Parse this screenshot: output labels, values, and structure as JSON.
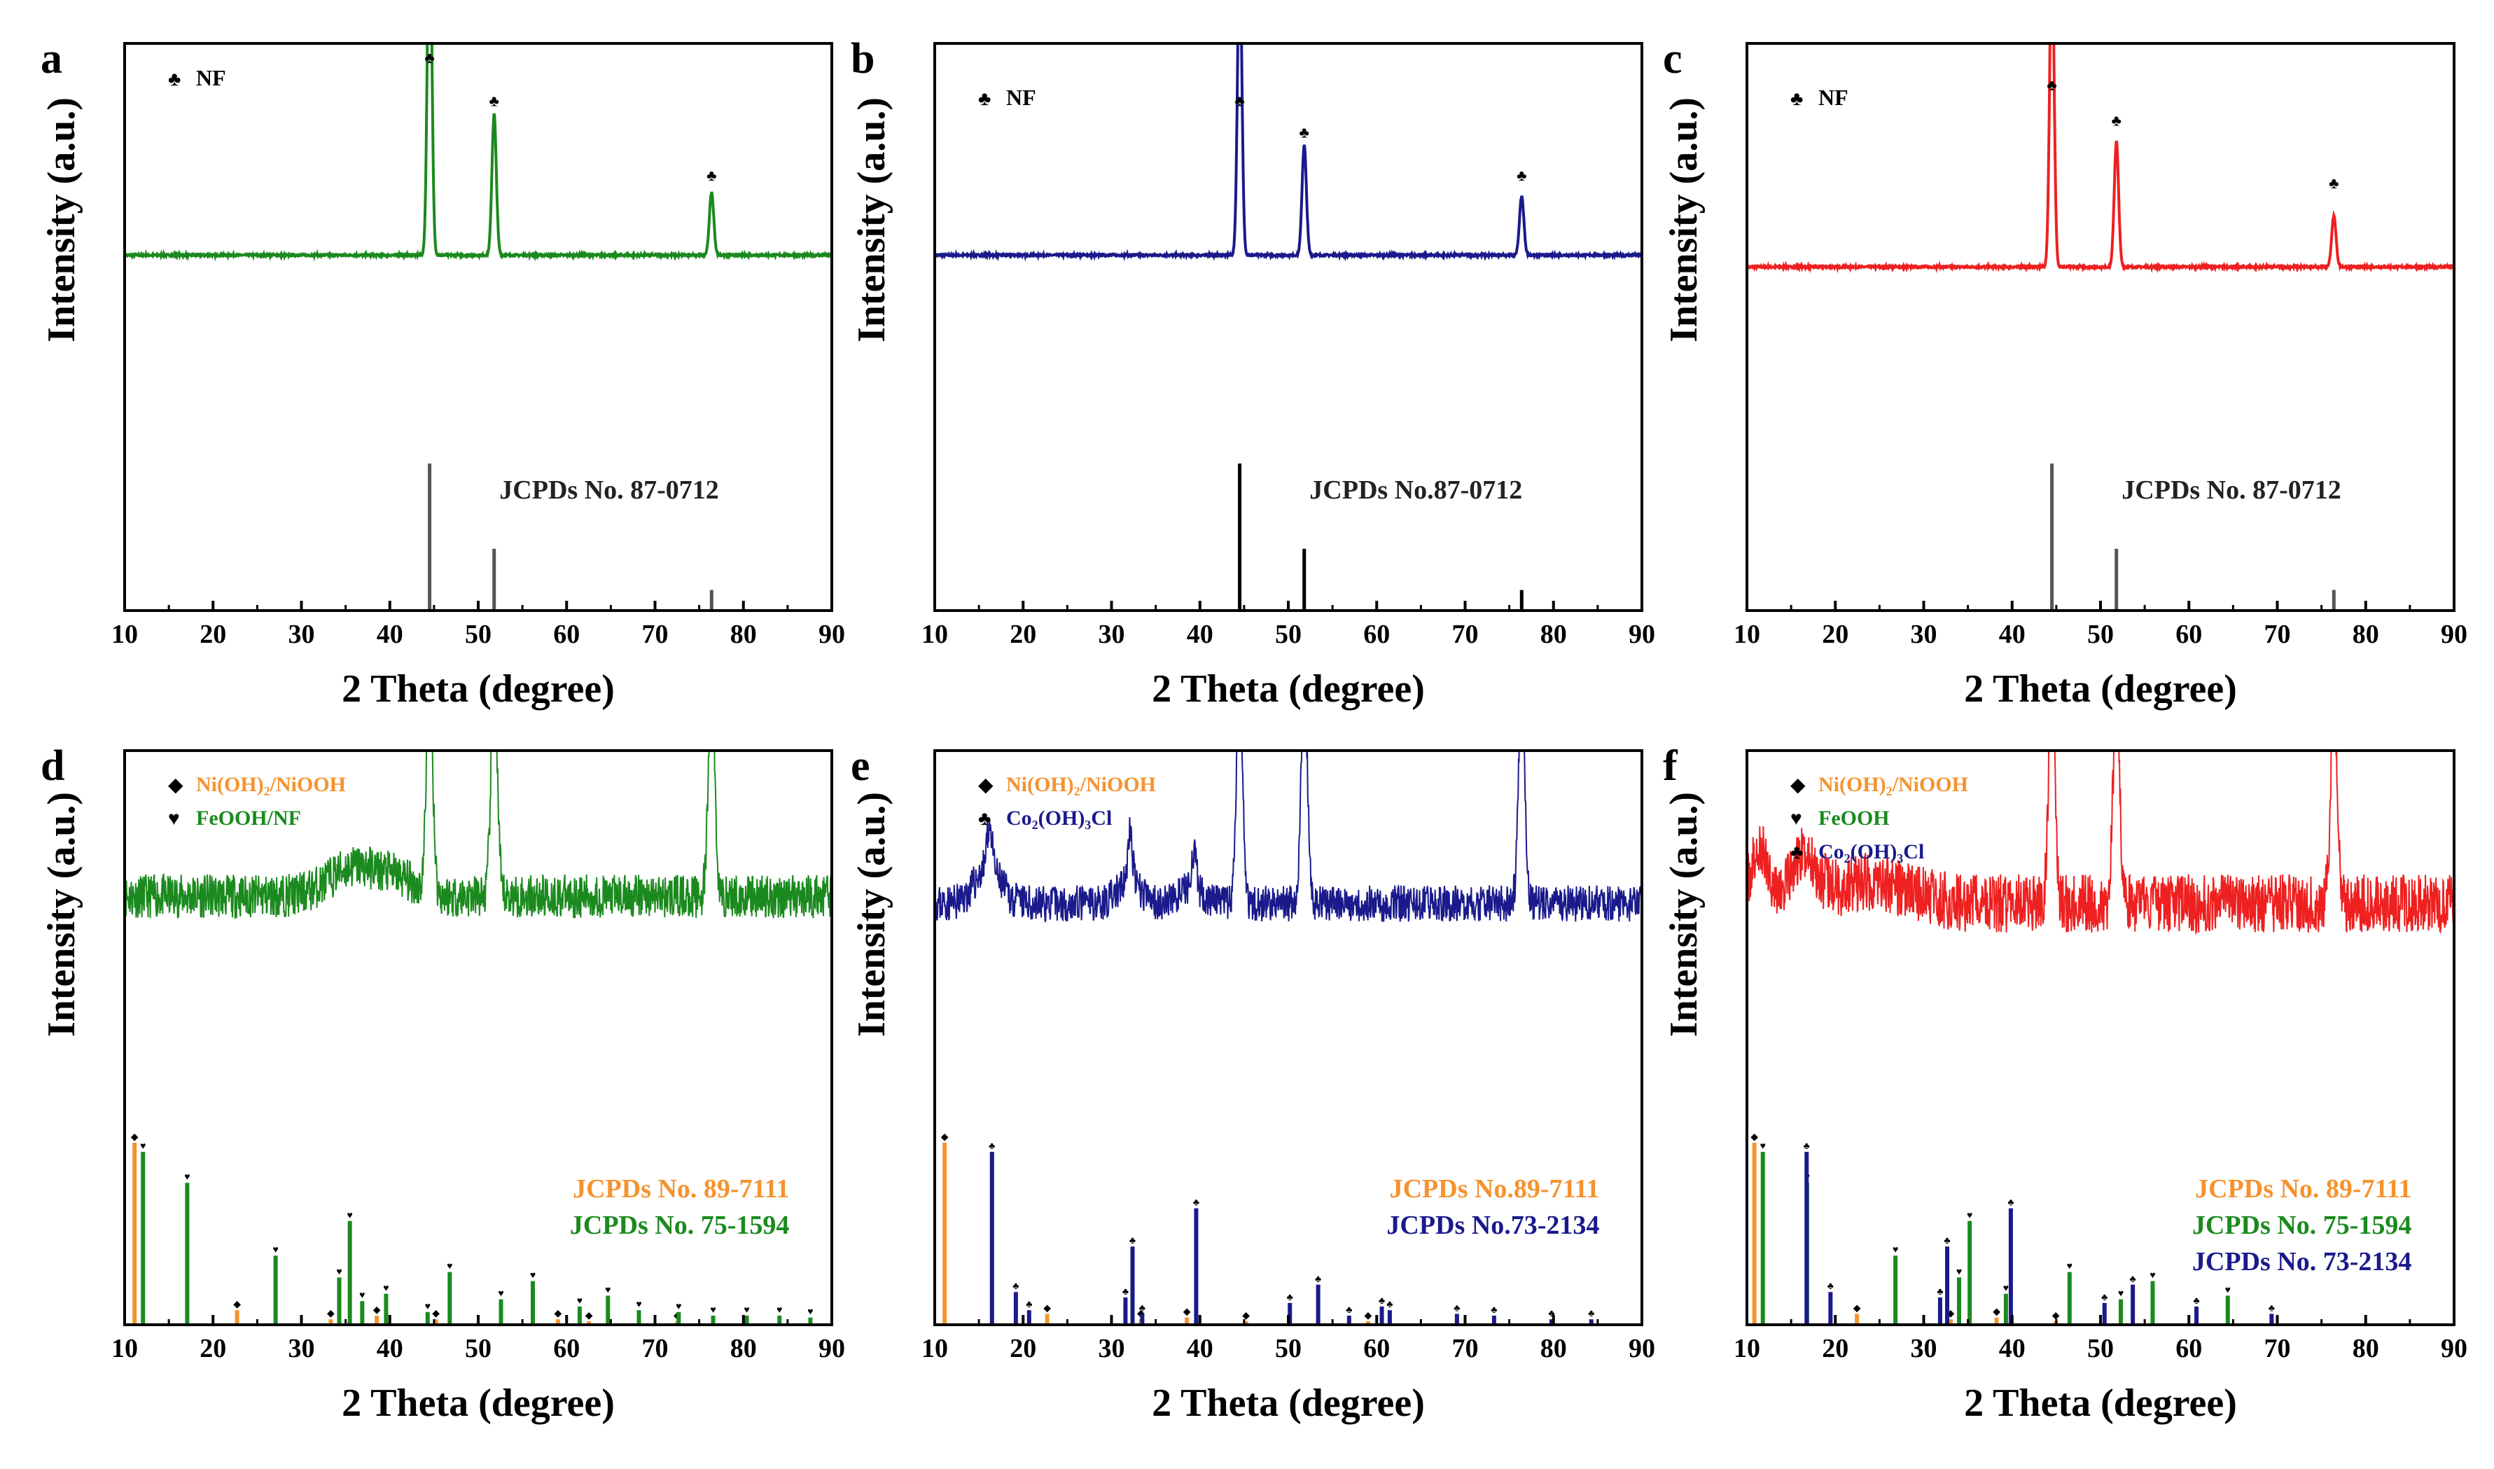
{
  "colors": {
    "green": "#1b8a1e",
    "blue": "#1a1a8c",
    "red": "#ee2020",
    "orange": "#f5932f",
    "ref_gray": "#555555",
    "black": "#000000"
  },
  "chart_data": [
    {
      "panel": "a",
      "type": "line",
      "xlabel": "2 Theta (degree)",
      "ylabel": "Intensity (a.u.)",
      "xlim": [
        10,
        90
      ],
      "xticks": [
        10,
        20,
        30,
        40,
        50,
        60,
        70,
        80,
        90
      ],
      "ylim": [
        0,
        100
      ],
      "color_key": "green",
      "baseline": 46,
      "noise": 0.25,
      "peaks": [
        {
          "x": 44.5,
          "h": 93,
          "w": 0.35
        },
        {
          "x": 51.8,
          "h": 36,
          "w": 0.35
        },
        {
          "x": 76.4,
          "h": 16,
          "w": 0.35
        }
      ],
      "markers": [
        {
          "x": 44.5,
          "y": 95,
          "symbol": "♣"
        },
        {
          "x": 51.8,
          "y": 84,
          "symbol": "♣"
        },
        {
          "x": 76.4,
          "y": 65,
          "symbol": "♣"
        }
      ],
      "legend": [
        {
          "symbol": "♣",
          "label": "NF",
          "color_key": "black"
        }
      ],
      "refs": [
        {
          "label": "JCPDs No. 87-0712",
          "color_key": "ref_gray",
          "lines": [
            {
              "x": 44.5,
              "h": 100
            },
            {
              "x": 51.8,
              "h": 42
            },
            {
              "x": 76.4,
              "h": 14
            }
          ]
        }
      ]
    },
    {
      "panel": "b",
      "type": "line",
      "xlabel": "2 Theta (degree)",
      "ylabel": "Intensity (a.u.)",
      "xlim": [
        10,
        90
      ],
      "xticks": [
        10,
        20,
        30,
        40,
        50,
        60,
        70,
        80,
        90
      ],
      "ylim": [
        0,
        100
      ],
      "color_key": "blue",
      "baseline": 46,
      "noise": 0.25,
      "peaks": [
        {
          "x": 44.5,
          "h": 77,
          "w": 0.35
        },
        {
          "x": 51.8,
          "h": 28,
          "w": 0.35
        },
        {
          "x": 76.4,
          "h": 15,
          "w": 0.35
        }
      ],
      "markers": [
        {
          "x": 44.5,
          "y": 84,
          "symbol": "♣"
        },
        {
          "x": 51.8,
          "y": 76,
          "symbol": "♣"
        },
        {
          "x": 76.4,
          "y": 65,
          "symbol": "♣"
        }
      ],
      "legend": [
        {
          "symbol": "♣",
          "label": "NF",
          "color_key": "black"
        }
      ],
      "refs": [
        {
          "label": "JCPDs No.87-0712",
          "color_key": "black",
          "lines": [
            {
              "x": 44.5,
              "h": 100
            },
            {
              "x": 51.8,
              "h": 42
            },
            {
              "x": 76.4,
              "h": 14
            }
          ]
        }
      ]
    },
    {
      "panel": "c",
      "type": "line",
      "xlabel": "2 Theta (degree)",
      "ylabel": "Intensity (a.u.)",
      "xlim": [
        10,
        90
      ],
      "xticks": [
        10,
        20,
        30,
        40,
        50,
        60,
        70,
        80,
        90
      ],
      "ylim": [
        0,
        100
      ],
      "color_key": "red",
      "baseline": 43,
      "noise": 0.25,
      "peaks": [
        {
          "x": 44.5,
          "h": 83,
          "w": 0.35
        },
        {
          "x": 51.8,
          "h": 32,
          "w": 0.35
        },
        {
          "x": 76.4,
          "h": 13,
          "w": 0.35
        }
      ],
      "markers": [
        {
          "x": 44.5,
          "y": 88,
          "symbol": "♣"
        },
        {
          "x": 51.8,
          "y": 79,
          "symbol": "♣"
        },
        {
          "x": 76.4,
          "y": 63,
          "symbol": "♣"
        }
      ],
      "legend": [
        {
          "symbol": "♣",
          "label": "NF",
          "color_key": "black"
        }
      ],
      "refs": [
        {
          "label": "JCPDs No. 87-0712",
          "color_key": "ref_gray",
          "lines": [
            {
              "x": 44.5,
              "h": 100
            },
            {
              "x": 51.8,
              "h": 42
            },
            {
              "x": 76.4,
              "h": 14
            }
          ]
        }
      ]
    },
    {
      "panel": "d",
      "type": "line",
      "xlabel": "2 Theta (degree)",
      "ylabel": "Intensity (a.u.)",
      "xlim": [
        10,
        90
      ],
      "xticks": [
        10,
        20,
        30,
        40,
        50,
        60,
        70,
        80,
        90
      ],
      "ylim": [
        0,
        100
      ],
      "color_key": "green",
      "baseline": 60,
      "noise": 6,
      "seed": 11,
      "humps": [
        {
          "x": 36,
          "h": 8,
          "w": 4
        },
        {
          "x": 41,
          "h": 4,
          "w": 3
        }
      ],
      "peaks": [
        {
          "x": 44.5,
          "h": 60,
          "w": 0.5
        },
        {
          "x": 51.8,
          "h": 60,
          "w": 0.5
        },
        {
          "x": 76.4,
          "h": 60,
          "w": 0.5
        }
      ],
      "markers": [],
      "legend": [
        {
          "symbol": "◆",
          "label": "Ni(OH)₂/NiOOH",
          "color_key": "orange"
        },
        {
          "symbol": "♥",
          "label": "FeOOH/NF",
          "color_key": "green"
        }
      ],
      "refs": [
        {
          "label": "JCPDs No. 89-7111",
          "color_key": "orange",
          "symbol": "◆",
          "lines": [
            {
              "x": 11.4,
              "h": 100
            },
            {
              "x": 23.0,
              "h": 8
            },
            {
              "x": 33.6,
              "h": 3
            },
            {
              "x": 38.8,
              "h": 5
            },
            {
              "x": 45.5,
              "h": 3
            },
            {
              "x": 59.3,
              "h": 3
            },
            {
              "x": 62.8,
              "h": 2
            },
            {
              "x": 72.8,
              "h": 2
            }
          ]
        },
        {
          "label": "JCPDs No. 75-1594",
          "color_key": "green",
          "symbol": "♥",
          "lines": [
            {
              "x": 11.8,
              "h": 95
            },
            {
              "x": 16.8,
              "h": 78
            },
            {
              "x": 26.8,
              "h": 38
            },
            {
              "x": 34.0,
              "h": 26
            },
            {
              "x": 35.2,
              "h": 57
            },
            {
              "x": 36.6,
              "h": 13
            },
            {
              "x": 39.3,
              "h": 17
            },
            {
              "x": 44.0,
              "h": 7
            },
            {
              "x": 46.5,
              "h": 29
            },
            {
              "x": 52.3,
              "h": 14
            },
            {
              "x": 55.9,
              "h": 24
            },
            {
              "x": 61.2,
              "h": 10
            },
            {
              "x": 64.4,
              "h": 16
            },
            {
              "x": 67.9,
              "h": 8
            },
            {
              "x": 72.4,
              "h": 7
            },
            {
              "x": 76.3,
              "h": 5
            },
            {
              "x": 80.1,
              "h": 5
            },
            {
              "x": 83.8,
              "h": 5
            },
            {
              "x": 87.3,
              "h": 4
            }
          ]
        }
      ]
    },
    {
      "panel": "e",
      "type": "line",
      "xlabel": "2 Theta (degree)",
      "ylabel": "Intensity (a.u.)",
      "xlim": [
        10,
        90
      ],
      "xticks": [
        10,
        20,
        30,
        40,
        50,
        60,
        70,
        80,
        90
      ],
      "ylim": [
        0,
        100
      ],
      "color_key": "blue",
      "baseline": 58,
      "noise": 5,
      "seed": 23,
      "humps": [
        {
          "x": 16,
          "h": 10,
          "w": 2
        },
        {
          "x": 32,
          "h": 5,
          "w": 2
        },
        {
          "x": 39,
          "h": 4,
          "w": 2
        }
      ],
      "peaks": [
        {
          "x": 16.2,
          "h": 12,
          "w": 0.4
        },
        {
          "x": 32.1,
          "h": 14,
          "w": 0.4
        },
        {
          "x": 39.3,
          "h": 10,
          "w": 0.4
        },
        {
          "x": 44.5,
          "h": 60,
          "w": 0.5
        },
        {
          "x": 51.8,
          "h": 60,
          "w": 0.5
        },
        {
          "x": 76.4,
          "h": 60,
          "w": 0.5
        }
      ],
      "markers": [],
      "legend": [
        {
          "symbol": "◆",
          "label": "Ni(OH)₂/NiOOH",
          "color_key": "orange"
        },
        {
          "symbol": "♣",
          "label": "Co₂(OH)₃Cl",
          "color_key": "blue"
        }
      ],
      "refs": [
        {
          "label": "JCPDs No.89-7111",
          "color_key": "orange",
          "symbol": "◆",
          "lines": [
            {
              "x": 11.4,
              "h": 100
            },
            {
              "x": 23.0,
              "h": 6
            },
            {
              "x": 33.6,
              "h": 3
            },
            {
              "x": 38.8,
              "h": 4
            },
            {
              "x": 45.5,
              "h": 2
            },
            {
              "x": 59.3,
              "h": 2
            }
          ]
        },
        {
          "label": "JCPDs No.73-2134",
          "color_key": "blue",
          "symbol": "♣",
          "lines": [
            {
              "x": 16.2,
              "h": 95
            },
            {
              "x": 18.9,
              "h": 18
            },
            {
              "x": 20.4,
              "h": 8
            },
            {
              "x": 31.3,
              "h": 15
            },
            {
              "x": 32.1,
              "h": 43
            },
            {
              "x": 33.2,
              "h": 6
            },
            {
              "x": 39.3,
              "h": 64
            },
            {
              "x": 49.9,
              "h": 12
            },
            {
              "x": 53.1,
              "h": 22
            },
            {
              "x": 56.6,
              "h": 5
            },
            {
              "x": 60.3,
              "h": 10
            },
            {
              "x": 61.2,
              "h": 8
            },
            {
              "x": 68.8,
              "h": 6
            },
            {
              "x": 73.0,
              "h": 5
            },
            {
              "x": 79.5,
              "h": 3
            },
            {
              "x": 84.0,
              "h": 3
            }
          ]
        }
      ]
    },
    {
      "panel": "f",
      "type": "line",
      "xlabel": "2 Theta (degree)",
      "ylabel": "Intensity (a.u.)",
      "xlim": [
        10,
        90
      ],
      "xticks": [
        10,
        20,
        30,
        40,
        50,
        60,
        70,
        80,
        90
      ],
      "ylim": [
        0,
        100
      ],
      "color_key": "red",
      "baseline": 58,
      "noise": 8,
      "seed": 37,
      "humps": [
        {
          "x": 11.5,
          "h": 14,
          "w": 1.5
        },
        {
          "x": 16.5,
          "h": 12,
          "w": 2
        },
        {
          "x": 24,
          "h": 6,
          "w": 6
        }
      ],
      "peaks": [
        {
          "x": 44.5,
          "h": 60,
          "w": 0.5
        },
        {
          "x": 51.8,
          "h": 60,
          "w": 0.5
        },
        {
          "x": 76.4,
          "h": 60,
          "w": 0.5
        }
      ],
      "markers": [],
      "legend": [
        {
          "symbol": "◆",
          "label": "Ni(OH)₂/NiOOH",
          "color_key": "orange"
        },
        {
          "symbol": "♥",
          "label": "FeOOH",
          "color_key": "green"
        },
        {
          "symbol": "♣",
          "label": "Co₂(OH)₃Cl",
          "color_key": "blue"
        }
      ],
      "refs": [
        {
          "label": "JCPDs No. 89-7111",
          "color_key": "orange",
          "symbol": "◆",
          "lines": [
            {
              "x": 11.4,
              "h": 100
            },
            {
              "x": 23.0,
              "h": 6
            },
            {
              "x": 33.6,
              "h": 3
            },
            {
              "x": 38.8,
              "h": 4
            },
            {
              "x": 45.5,
              "h": 2
            }
          ]
        },
        {
          "label": "JCPDs No. 75-1594",
          "color_key": "green",
          "symbol": "♥",
          "lines": [
            {
              "x": 11.8,
              "h": 95
            },
            {
              "x": 16.8,
              "h": 78
            },
            {
              "x": 26.8,
              "h": 38
            },
            {
              "x": 34.0,
              "h": 26
            },
            {
              "x": 35.2,
              "h": 57
            },
            {
              "x": 39.3,
              "h": 17
            },
            {
              "x": 46.5,
              "h": 29
            },
            {
              "x": 52.3,
              "h": 14
            },
            {
              "x": 55.9,
              "h": 24
            },
            {
              "x": 64.4,
              "h": 16
            }
          ]
        },
        {
          "label": "JCPDs No. 73-2134",
          "color_key": "blue",
          "symbol": "♣",
          "lines": [
            {
              "x": 16.2,
              "h": 95
            },
            {
              "x": 18.9,
              "h": 18
            },
            {
              "x": 31.3,
              "h": 15
            },
            {
              "x": 32.1,
              "h": 43
            },
            {
              "x": 39.3,
              "h": 64
            },
            {
              "x": 49.9,
              "h": 12
            },
            {
              "x": 53.1,
              "h": 22
            },
            {
              "x": 60.3,
              "h": 10
            },
            {
              "x": 68.8,
              "h": 6
            }
          ]
        }
      ]
    }
  ]
}
